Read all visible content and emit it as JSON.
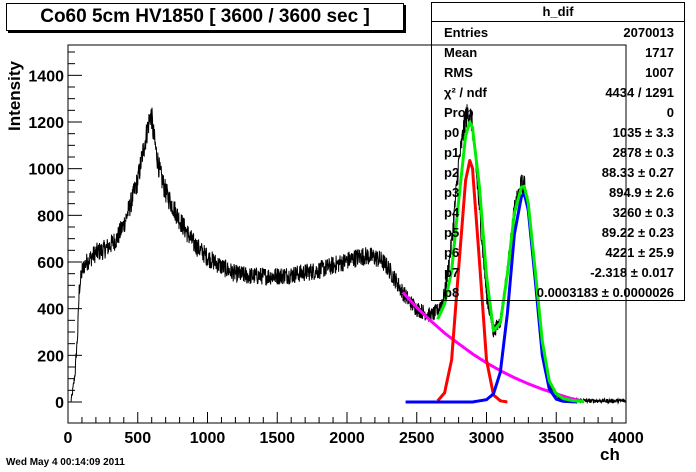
{
  "chart_data": {
    "type": "line",
    "title": "Co60 5cm HV1850 [ 3600 / 3600 sec ]",
    "xlabel": "ch",
    "ylabel": "Intensity",
    "xlim": [
      0,
      4000
    ],
    "ylim": [
      -90,
      1530
    ],
    "x_ticks": [
      0,
      500,
      1000,
      1500,
      2000,
      2500,
      3000,
      3500,
      4000
    ],
    "y_ticks": [
      0,
      200,
      400,
      600,
      800,
      1000,
      1200,
      1400
    ],
    "grid": false,
    "histogram": {
      "name": "h_dif",
      "color": "#000000",
      "x": [
        20,
        30,
        50,
        70,
        80,
        100,
        120,
        150,
        200,
        250,
        300,
        350,
        400,
        450,
        500,
        540,
        570,
        590,
        600,
        610,
        630,
        660,
        700,
        800,
        900,
        1000,
        1100,
        1200,
        1300,
        1400,
        1500,
        1600,
        1700,
        1800,
        1900,
        2000,
        2100,
        2150,
        2200,
        2250,
        2300,
        2350,
        2400,
        2450,
        2500,
        2550,
        2600,
        2650,
        2700,
        2750,
        2800,
        2850,
        2880,
        2900,
        2950,
        3000,
        3050,
        3100,
        3150,
        3200,
        3250,
        3270,
        3300,
        3350,
        3400,
        3450,
        3500,
        3550,
        3600,
        3700,
        3800,
        3900,
        4000
      ],
      "y": [
        0,
        30,
        120,
        300,
        480,
        560,
        590,
        610,
        640,
        650,
        670,
        700,
        760,
        850,
        950,
        1080,
        1170,
        1230,
        1220,
        1160,
        1080,
        980,
        900,
        780,
        680,
        620,
        580,
        550,
        540,
        540,
        540,
        545,
        555,
        565,
        585,
        605,
        625,
        625,
        620,
        605,
        570,
        520,
        470,
        430,
        400,
        385,
        370,
        390,
        460,
        680,
        1020,
        1220,
        1240,
        1180,
        820,
        460,
        300,
        350,
        560,
        820,
        930,
        930,
        840,
        520,
        230,
        80,
        30,
        15,
        10,
        5,
        5,
        5,
        5
      ]
    },
    "fits": [
      {
        "color": "#00ee00",
        "x": [
          2650,
          2700,
          2750,
          2800,
          2850,
          2880,
          2900,
          2950,
          3000,
          3050,
          3100,
          3150,
          3200,
          3250,
          3270,
          3300,
          3350,
          3400,
          3450,
          3500,
          3550,
          3600,
          3650,
          3700
        ],
        "y": [
          355,
          420,
          560,
          860,
          1140,
          1200,
          1175,
          920,
          540,
          305,
          340,
          550,
          810,
          920,
          925,
          850,
          560,
          260,
          90,
          35,
          15,
          8,
          4,
          2
        ]
      },
      {
        "color": "#ff0000",
        "x": [
          2650,
          2700,
          2750,
          2800,
          2850,
          2880,
          2900,
          2950,
          3000,
          3050,
          3100,
          3150
        ],
        "y": [
          5,
          40,
          180,
          570,
          950,
          1035,
          1000,
          600,
          180,
          30,
          5,
          0
        ]
      },
      {
        "color": "#0000ff",
        "x": [
          2420,
          2900,
          3000,
          3050,
          3100,
          3150,
          3200,
          3250,
          3270,
          3300,
          3350,
          3400,
          3450,
          3500,
          3550,
          3650
        ],
        "y": [
          0,
          0,
          10,
          35,
          130,
          380,
          720,
          880,
          895,
          820,
          520,
          200,
          55,
          12,
          3,
          0
        ]
      },
      {
        "color": "#ff00ff",
        "x": [
          2400,
          2500,
          2600,
          2700,
          2800,
          2900,
          3000,
          3100,
          3200,
          3300,
          3400,
          3500,
          3600,
          3700
        ],
        "y": [
          470,
          405,
          348,
          295,
          250,
          206,
          168,
          134,
          104,
          78,
          55,
          35,
          16,
          2
        ]
      }
    ]
  },
  "stats_box": {
    "title": "h_dif",
    "rows": [
      {
        "key": "Entries",
        "value": "2070013"
      },
      {
        "key": "Mean",
        "value": "1717"
      },
      {
        "key": "RMS",
        "value": "1007"
      },
      {
        "key": "χ² / ndf",
        "value": "4434 / 1291"
      },
      {
        "key": "Prob",
        "value": "0"
      },
      {
        "key": "p0",
        "value": "1035 ± 3.3"
      },
      {
        "key": "p1",
        "value": "2878 ± 0.3"
      },
      {
        "key": "p2",
        "value": "88.33 ± 0.27"
      },
      {
        "key": "p3",
        "value": "894.9 ± 2.6"
      },
      {
        "key": "p4",
        "value": "3260 ± 0.3"
      },
      {
        "key": "p5",
        "value": "89.22 ± 0.23"
      },
      {
        "key": "p6",
        "value": "4221 ± 25.9"
      },
      {
        "key": "p7",
        "value": "-2.318 ± 0.017"
      },
      {
        "key": "p8",
        "value": "0.0003183 ± 0.0000026"
      }
    ]
  },
  "timestamp": "Wed May  4 00:14:09 2011"
}
